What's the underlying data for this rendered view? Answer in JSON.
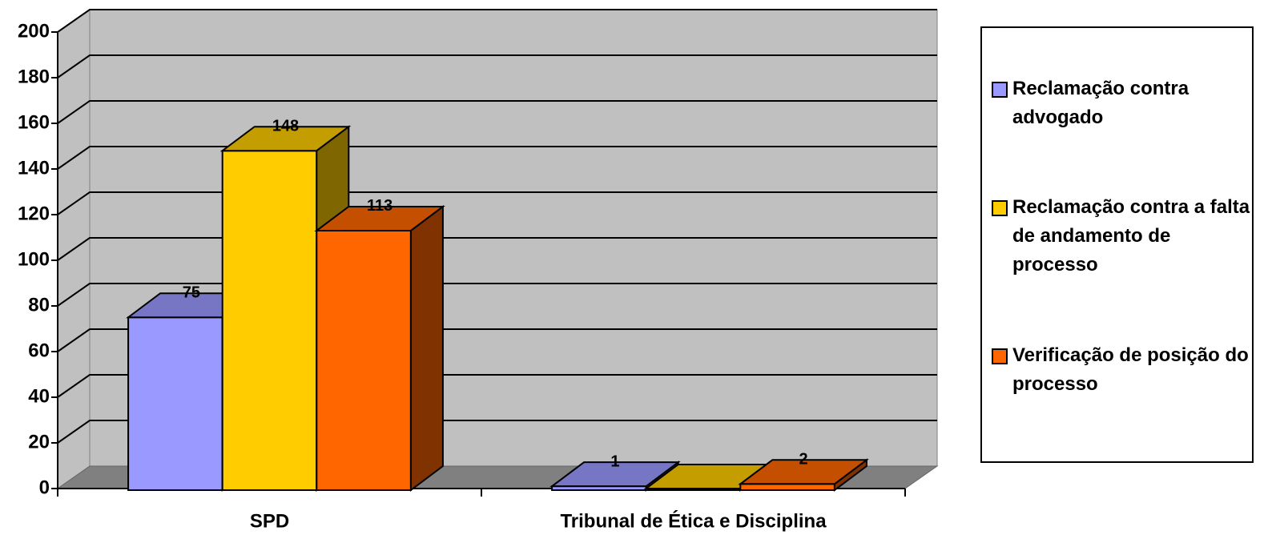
{
  "chart_data": {
    "type": "bar3d",
    "categories": [
      "SPD",
      "Tribunal de Ética e Disciplina"
    ],
    "series": [
      {
        "name": "Reclamação contra advogado",
        "color": "#9999ff",
        "values": [
          75,
          1
        ],
        "value_labels": [
          "75",
          "1"
        ]
      },
      {
        "name": "Reclamação contra a falta de andamento de processo",
        "color": "#ffcc00",
        "values": [
          148,
          0
        ],
        "value_labels": [
          "148",
          null
        ]
      },
      {
        "name": "Verificação de posição do processo",
        "color": "#ff6600",
        "values": [
          113,
          2
        ],
        "value_labels": [
          "113",
          "2"
        ]
      }
    ],
    "ylim": [
      0,
      200
    ],
    "yticks": [
      0,
      20,
      40,
      60,
      80,
      100,
      120,
      140,
      160,
      180,
      200
    ],
    "grid": true,
    "legend": "right"
  }
}
